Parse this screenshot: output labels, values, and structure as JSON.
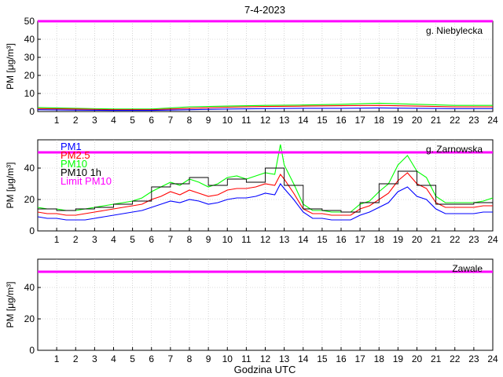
{
  "title": "7-4-2023",
  "xlabel": "Godzina UTC",
  "colors": {
    "pm1": "#0000ff",
    "pm25": "#ff0000",
    "pm10": "#00ff00",
    "pm10_1h": "#000000",
    "limit": "#ff00ff"
  },
  "chart_data": [
    {
      "type": "line",
      "station": "g. Niebylecka",
      "ylabel": "PM [μg/m³]",
      "xlim": [
        0,
        24
      ],
      "ylim": [
        0,
        50
      ],
      "yticks": [
        0,
        10,
        20,
        30,
        40,
        50
      ],
      "xticks": [
        1,
        2,
        3,
        4,
        5,
        6,
        7,
        8,
        9,
        10,
        11,
        12,
        13,
        14,
        15,
        16,
        17,
        18,
        19,
        20,
        21,
        22,
        23,
        24
      ],
      "limit_pm10": 50,
      "series": [
        {
          "key": "pm1",
          "x": [
            0,
            2,
            4,
            6,
            8,
            10,
            12,
            14,
            16,
            18,
            20,
            22,
            24
          ],
          "values": [
            1.0,
            0.8,
            0.6,
            0.6,
            1.0,
            1.4,
            1.6,
            1.8,
            1.8,
            2.0,
            1.8,
            1.6,
            1.6
          ]
        },
        {
          "key": "pm25",
          "x": [
            0,
            2,
            4,
            6,
            8,
            10,
            12,
            14,
            16,
            18,
            20,
            22,
            24
          ],
          "values": [
            1.6,
            1.4,
            1.0,
            1.0,
            1.8,
            2.4,
            2.8,
            3.0,
            3.2,
            3.4,
            3.0,
            2.6,
            2.6
          ]
        },
        {
          "key": "pm10",
          "x": [
            0,
            2,
            4,
            6,
            8,
            10,
            12,
            14,
            16,
            18,
            20,
            22,
            24
          ],
          "values": [
            2.2,
            1.8,
            1.4,
            1.4,
            2.6,
            3.0,
            3.4,
            3.6,
            4.0,
            4.6,
            4.0,
            3.4,
            3.4
          ]
        }
      ],
      "pm10_1h": []
    },
    {
      "type": "line",
      "station": "g. Zarnowska",
      "ylabel": "PM [μg/m³]",
      "xlim": [
        0,
        24
      ],
      "ylim": [
        0,
        58
      ],
      "yticks": [
        0,
        20,
        40
      ],
      "xticks": [
        1,
        2,
        3,
        4,
        5,
        6,
        7,
        8,
        9,
        10,
        11,
        12,
        13,
        14,
        15,
        16,
        17,
        18,
        19,
        20,
        21,
        22,
        23,
        24
      ],
      "limit_pm10": 50,
      "legend": [
        "PM1",
        "PM2.5",
        "PM10",
        "PM10 1h",
        "Limit PM10"
      ],
      "series": [
        {
          "key": "pm1",
          "x": [
            0,
            0.5,
            1,
            1.5,
            2,
            2.5,
            3,
            3.5,
            4,
            4.5,
            5,
            5.5,
            6,
            6.5,
            7,
            7.5,
            8,
            8.5,
            9,
            9.5,
            10,
            10.5,
            11,
            11.5,
            12,
            12.5,
            12.8,
            13,
            13.5,
            14,
            14.5,
            15,
            15.5,
            16,
            16.5,
            17,
            17.5,
            18,
            18.5,
            19,
            19.5,
            20,
            20.5,
            21,
            21.5,
            22,
            22.5,
            23,
            23.5,
            24
          ],
          "values": [
            9,
            8,
            8,
            7,
            7,
            7,
            8,
            9,
            10,
            11,
            12,
            13,
            15,
            17,
            19,
            18,
            20,
            19,
            17,
            18,
            20,
            21,
            21,
            22,
            24,
            23,
            30,
            27,
            20,
            12,
            8,
            8,
            7,
            7,
            7,
            10,
            12,
            15,
            18,
            25,
            28,
            22,
            20,
            14,
            11,
            11,
            11,
            11,
            12,
            12
          ]
        },
        {
          "key": "pm25",
          "x": [
            0,
            0.5,
            1,
            1.5,
            2,
            2.5,
            3,
            3.5,
            4,
            4.5,
            5,
            5.5,
            6,
            6.5,
            7,
            7.5,
            8,
            8.5,
            9,
            9.5,
            10,
            10.5,
            11,
            11.5,
            12,
            12.5,
            12.8,
            13,
            13.5,
            14,
            14.5,
            15,
            15.5,
            16,
            16.5,
            17,
            17.5,
            18,
            18.5,
            19,
            19.5,
            20,
            20.5,
            21,
            21.5,
            22,
            22.5,
            23,
            23.5,
            24
          ],
          "values": [
            12,
            11,
            11,
            10,
            10,
            11,
            12,
            13,
            14,
            15,
            16,
            17,
            20,
            22,
            25,
            23,
            26,
            24,
            22,
            23,
            26,
            27,
            27,
            28,
            30,
            29,
            36,
            33,
            24,
            14,
            11,
            11,
            10,
            10,
            10,
            14,
            16,
            20,
            24,
            32,
            37,
            30,
            27,
            18,
            15,
            15,
            15,
            15,
            16,
            16
          ]
        },
        {
          "key": "pm10",
          "x": [
            0,
            0.5,
            1,
            1.5,
            2,
            2.5,
            3,
            3.5,
            4,
            4.5,
            5,
            5.5,
            6,
            6.5,
            7,
            7.5,
            8,
            8.5,
            9,
            9.5,
            10,
            10.5,
            11,
            11.5,
            12,
            12.5,
            12.8,
            13,
            13.5,
            14,
            14.5,
            15,
            15.5,
            16,
            16.5,
            17,
            17.5,
            18,
            18.5,
            19,
            19.5,
            20,
            20.5,
            21,
            21.5,
            22,
            22.5,
            23,
            23.5,
            24
          ],
          "values": [
            15,
            14,
            14,
            13,
            13,
            14,
            15,
            16,
            17,
            18,
            19,
            21,
            25,
            28,
            31,
            29,
            33,
            31,
            28,
            30,
            34,
            35,
            33,
            35,
            37,
            36,
            55,
            42,
            30,
            17,
            13,
            13,
            12,
            12,
            12,
            17,
            19,
            25,
            30,
            42,
            48,
            38,
            34,
            22,
            18,
            18,
            18,
            18,
            19,
            21
          ]
        }
      ],
      "pm10_1h": [
        {
          "x0": 0,
          "x1": 1,
          "value": 14
        },
        {
          "x0": 1,
          "x1": 2,
          "value": 13
        },
        {
          "x0": 2,
          "x1": 3,
          "value": 14
        },
        {
          "x0": 3,
          "x1": 4,
          "value": 15
        },
        {
          "x0": 4,
          "x1": 5,
          "value": 17
        },
        {
          "x0": 5,
          "x1": 6,
          "value": 19
        },
        {
          "x0": 6,
          "x1": 7,
          "value": 28
        },
        {
          "x0": 7,
          "x1": 8,
          "value": 30
        },
        {
          "x0": 8,
          "x1": 9,
          "value": 34
        },
        {
          "x0": 9,
          "x1": 10,
          "value": 29
        },
        {
          "x0": 10,
          "x1": 11,
          "value": 33
        },
        {
          "x0": 11,
          "x1": 12,
          "value": 31
        },
        {
          "x0": 12,
          "x1": 13,
          "value": 40
        },
        {
          "x0": 13,
          "x1": 14,
          "value": 29
        },
        {
          "x0": 14,
          "x1": 15,
          "value": 14
        },
        {
          "x0": 15,
          "x1": 16,
          "value": 13
        },
        {
          "x0": 16,
          "x1": 17,
          "value": 12
        },
        {
          "x0": 17,
          "x1": 18,
          "value": 18
        },
        {
          "x0": 18,
          "x1": 19,
          "value": 30
        },
        {
          "x0": 19,
          "x1": 20,
          "value": 38
        },
        {
          "x0": 20,
          "x1": 21,
          "value": 29
        },
        {
          "x0": 21,
          "x1": 22,
          "value": 17
        },
        {
          "x0": 22,
          "x1": 23,
          "value": 17
        },
        {
          "x0": 23,
          "x1": 24,
          "value": 18
        }
      ]
    },
    {
      "type": "line",
      "station": "Zawale",
      "ylabel": "PM [μg/m³]",
      "xlim": [
        0,
        24
      ],
      "ylim": [
        0,
        58
      ],
      "yticks": [
        0,
        20,
        40
      ],
      "xticks": [
        1,
        2,
        3,
        4,
        5,
        6,
        7,
        8,
        9,
        10,
        11,
        12,
        13,
        14,
        15,
        16,
        17,
        18,
        19,
        20,
        21,
        22,
        23,
        24
      ],
      "limit_pm10": 50,
      "series": [],
      "pm10_1h": []
    }
  ]
}
